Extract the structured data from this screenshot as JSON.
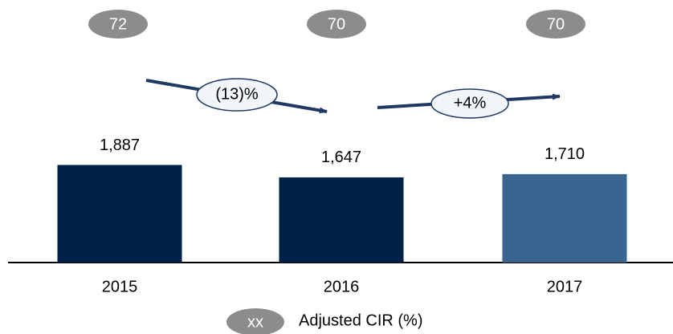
{
  "chart_data": {
    "type": "bar",
    "categories": [
      "2015",
      "2016",
      "2017"
    ],
    "values": [
      1887,
      1647,
      1710
    ],
    "value_labels": [
      "1,887",
      "1,647",
      "1,710"
    ],
    "colors": [
      "#002147",
      "#002147",
      "#3a6591"
    ],
    "ylim": [
      0,
      5000
    ],
    "cir": [
      72,
      70,
      70
    ],
    "cir_color": "#8c8c8c",
    "changes": [
      "(13)%",
      "+4%"
    ],
    "legend": {
      "marker": "xx",
      "label": "Adjusted CIR (%)"
    }
  }
}
